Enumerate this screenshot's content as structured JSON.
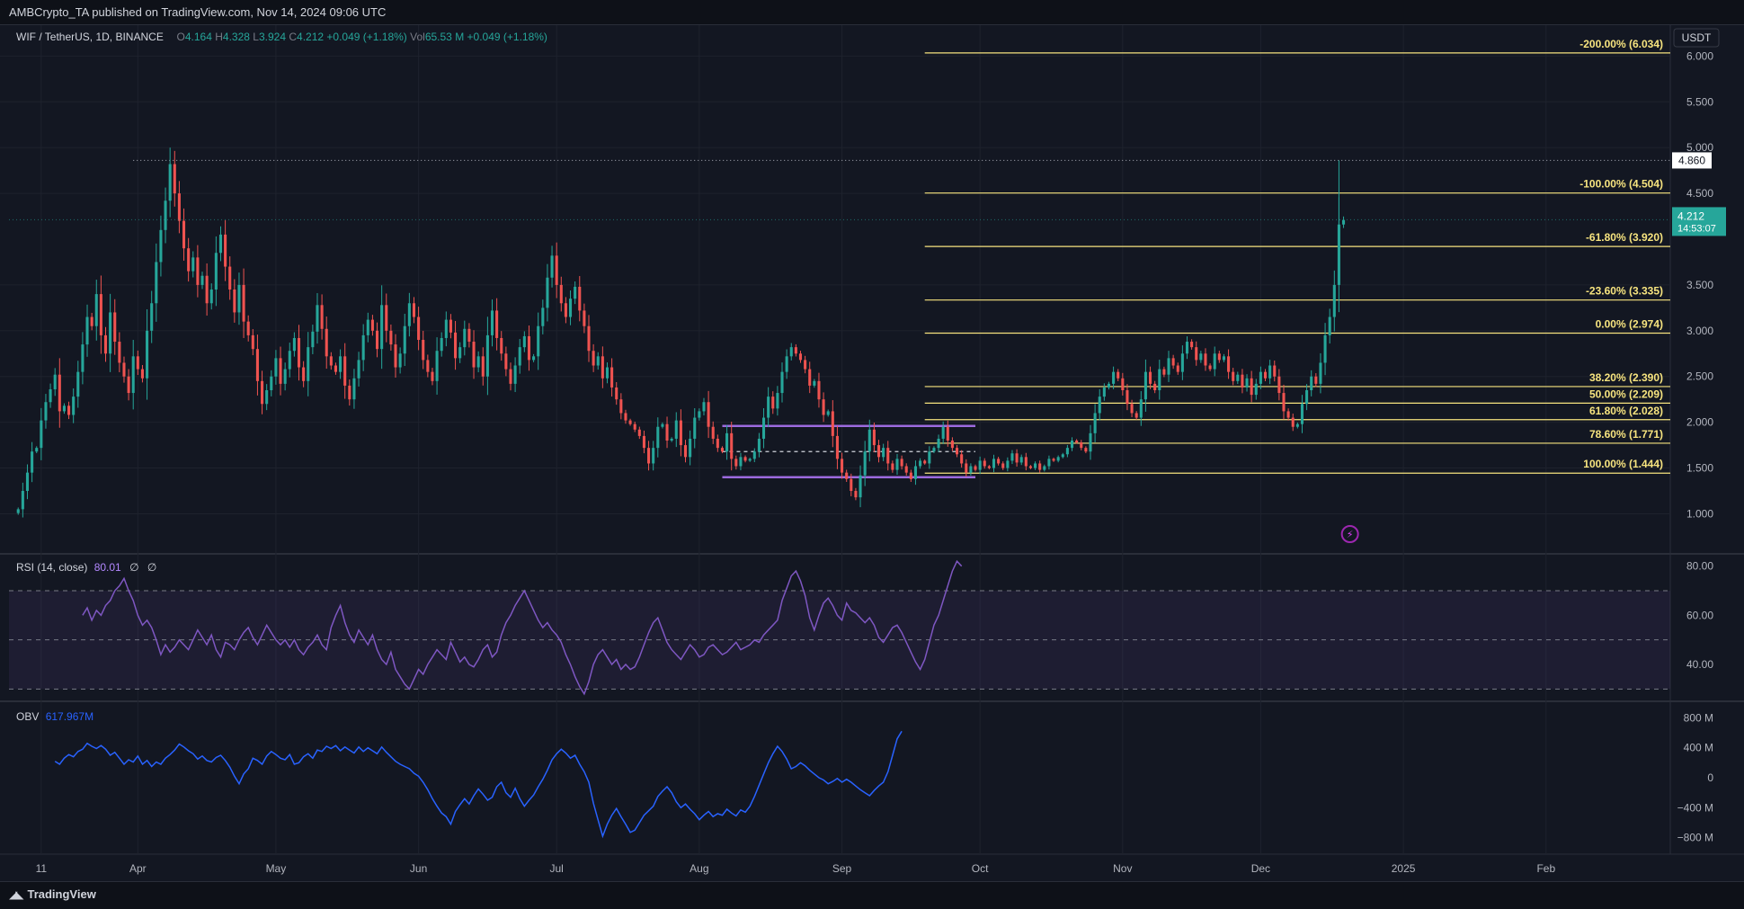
{
  "header": {
    "publisher": "AMBCrypto_TA published on TradingView.com, Nov 14, 2024 09:06 UTC"
  },
  "legend": {
    "symbol": "WIF / TetherUS, 1D, BINANCE",
    "o_label": "O",
    "o": "4.164",
    "h_label": "H",
    "h": "4.328",
    "l_label": "L",
    "l": "3.924",
    "c_label": "C",
    "c": "4.212",
    "change": "+0.049 (+1.18%)",
    "vol_label": "Vol",
    "vol": "65.53 M",
    "vol_change": "+0.049 (+1.18%)"
  },
  "price_axis": {
    "currency": "USDT",
    "high_marker": "4.860",
    "last_price": "4.212",
    "countdown": "14:53:07"
  },
  "rsi": {
    "label": "RSI (14, close)",
    "value": "80.01",
    "extra1": "∅",
    "extra2": "∅"
  },
  "obv": {
    "label": "OBV",
    "value": "617.967M"
  },
  "footer": {
    "brand": "TradingView"
  },
  "colors": {
    "background": "#131722",
    "up": "#26a69a",
    "down": "#ef5350",
    "fib": "#f7e47f",
    "range": "#9c6ade",
    "rsi": "#7e57c2",
    "obv": "#2962ff"
  },
  "chart_data": [
    {
      "type": "candlestick",
      "title": "WIF / TetherUS, 1D, BINANCE",
      "x_ticks": [
        "11",
        "Apr",
        "May",
        "Jun",
        "Jul",
        "Aug",
        "Sep",
        "Oct",
        "Nov",
        "Dec",
        "2025",
        "Feb"
      ],
      "y_ticks": [
        "6.000",
        "5.500",
        "5.000",
        "4.500",
        "3.500",
        "3.000",
        "2.500",
        "2.000",
        "1.500",
        "1.000"
      ],
      "ylim": [
        0.7,
        6.2
      ],
      "x_range": [
        "2024-03-04",
        "2025-02-28"
      ],
      "first_date": "2024-03-06",
      "close": [
        1.05,
        1.25,
        1.45,
        1.68,
        1.72,
        2.02,
        2.22,
        2.36,
        2.52,
        2.12,
        2.18,
        2.08,
        2.28,
        2.55,
        2.85,
        3.15,
        3.05,
        3.4,
        2.95,
        2.75,
        3.2,
        2.88,
        2.65,
        2.5,
        2.32,
        2.72,
        2.58,
        2.48,
        3.0,
        3.3,
        3.75,
        4.1,
        4.42,
        4.82,
        4.5,
        4.2,
        3.9,
        3.65,
        3.8,
        3.5,
        3.6,
        3.3,
        3.45,
        3.85,
        4.05,
        3.7,
        3.45,
        3.2,
        3.5,
        3.1,
        2.95,
        2.8,
        2.45,
        2.2,
        2.35,
        2.5,
        2.7,
        2.42,
        2.58,
        2.78,
        2.92,
        2.6,
        2.45,
        2.82,
        2.99,
        3.28,
        3.02,
        2.72,
        2.62,
        2.55,
        2.72,
        2.4,
        2.25,
        2.48,
        2.68,
        2.95,
        3.12,
        3.0,
        2.8,
        3.28,
        3.0,
        2.85,
        2.6,
        2.75,
        3.05,
        3.3,
        3.15,
        2.9,
        2.68,
        2.55,
        2.45,
        2.78,
        2.92,
        3.12,
        2.98,
        2.7,
        2.82,
        3.02,
        2.88,
        2.6,
        2.72,
        2.5,
        2.95,
        3.22,
        2.92,
        2.75,
        2.58,
        2.42,
        2.62,
        2.82,
        2.94,
        2.68,
        2.72,
        3.05,
        3.25,
        3.58,
        3.82,
        3.5,
        3.3,
        3.15,
        3.35,
        3.48,
        3.22,
        3.05,
        2.78,
        2.62,
        2.72,
        2.48,
        2.6,
        2.38,
        2.25,
        2.1,
        2.02,
        1.98,
        1.92,
        1.85,
        1.72,
        1.55,
        1.72,
        1.95,
        1.98,
        1.8,
        1.82,
        2.02,
        1.75,
        1.62,
        1.82,
        2.05,
        2.12,
        2.22,
        1.95,
        1.82,
        1.72,
        1.68,
        1.88,
        1.6,
        1.52,
        1.62,
        1.58,
        1.6,
        1.68,
        1.82,
        2.05,
        2.28,
        2.15,
        2.32,
        2.55,
        2.72,
        2.82,
        2.75,
        2.68,
        2.58,
        2.4,
        2.45,
        2.25,
        2.08,
        2.12,
        1.85,
        1.6,
        1.45,
        1.38,
        1.25,
        1.18,
        1.42,
        1.68,
        1.92,
        1.75,
        1.62,
        1.72,
        1.55,
        1.48,
        1.6,
        1.52,
        1.45,
        1.38,
        1.52,
        1.58,
        1.55,
        1.68,
        1.72,
        1.82,
        1.95,
        1.8,
        1.72,
        1.65,
        1.55,
        1.45,
        1.52,
        1.48,
        1.58,
        1.52,
        1.5,
        1.6,
        1.55,
        1.5,
        1.58,
        1.66,
        1.56,
        1.62,
        1.52,
        1.5,
        1.55,
        1.48,
        1.52,
        1.6,
        1.58,
        1.62,
        1.65,
        1.72,
        1.8,
        1.78,
        1.72,
        1.68,
        1.88,
        2.1,
        2.28,
        2.38,
        2.42,
        2.55,
        2.48,
        2.35,
        2.2,
        2.1,
        2.05,
        2.25,
        2.55,
        2.42,
        2.35,
        2.58,
        2.52,
        2.7,
        2.62,
        2.55,
        2.75,
        2.88,
        2.82,
        2.68,
        2.75,
        2.62,
        2.58,
        2.75,
        2.68,
        2.72,
        2.55,
        2.45,
        2.52,
        2.38,
        2.48,
        2.3,
        2.42,
        2.55,
        2.48,
        2.62,
        2.5,
        2.32,
        2.12,
        2.05,
        1.95,
        1.98,
        2.2,
        2.35,
        2.5,
        2.42,
        2.65,
        2.95,
        3.15,
        3.5,
        4.16,
        4.21
      ]
    },
    {
      "type": "annotations",
      "fib_levels": [
        {
          "label": "-200.00% (6.034)",
          "value": 6.034
        },
        {
          "label": "-100.00% (4.504)",
          "value": 4.504
        },
        {
          "label": "-61.80% (3.920)",
          "value": 3.92
        },
        {
          "label": "-23.60% (3.335)",
          "value": 3.335
        },
        {
          "label": "0.00% (2.974)",
          "value": 2.974
        },
        {
          "label": "38.20% (2.390)",
          "value": 2.39
        },
        {
          "label": "50.00% (2.209)",
          "value": 2.209
        },
        {
          "label": "61.80% (2.028)",
          "value": 2.028
        },
        {
          "label": "78.60% (1.771)",
          "value": 1.771
        },
        {
          "label": "100.00% (1.444)",
          "value": 1.444
        }
      ],
      "range_box": {
        "start": "2024-08-06",
        "end": "2024-09-30",
        "high": 1.96,
        "low": 1.4,
        "mid": 1.68
      },
      "prior_high": {
        "value": 4.86,
        "start": "2024-03-31"
      }
    },
    {
      "type": "line",
      "name": "RSI (14, close)",
      "y_ticks": [
        "80.00",
        "60.00",
        "40.00"
      ],
      "ylim": [
        25,
        85
      ],
      "bands": [
        70,
        50,
        30
      ],
      "x_range": [
        "2024-03-04",
        "2025-02-28"
      ],
      "first_date": "2024-03-20",
      "values": [
        60,
        63,
        58,
        62,
        60,
        64,
        66,
        70,
        72,
        75,
        70,
        66,
        60,
        56,
        58,
        55,
        50,
        44,
        48,
        45,
        47,
        50,
        48,
        46,
        50,
        54,
        51,
        48,
        52,
        46,
        43,
        49,
        48,
        46,
        50,
        53,
        55,
        51,
        48,
        52,
        56,
        53,
        50,
        48,
        50,
        47,
        50,
        46,
        44,
        47,
        49,
        52,
        48,
        46,
        55,
        60,
        64,
        57,
        52,
        49,
        54,
        51,
        48,
        52,
        46,
        42,
        40,
        45,
        38,
        35,
        32,
        30,
        34,
        38,
        36,
        40,
        43,
        46,
        44,
        42,
        49,
        45,
        41,
        43,
        40,
        39,
        42,
        46,
        48,
        43,
        45,
        52,
        57,
        60,
        64,
        67,
        70,
        66,
        62,
        58,
        55,
        57,
        54,
        52,
        49,
        44,
        40,
        35,
        31,
        28,
        33,
        40,
        44,
        46,
        43,
        40,
        42,
        38,
        40,
        38,
        39,
        43,
        48,
        53,
        57,
        59,
        54,
        49,
        46,
        44,
        42,
        45,
        48,
        46,
        43,
        44,
        47,
        48,
        46,
        44,
        45,
        47,
        49,
        46,
        47,
        48,
        50,
        49,
        52,
        54,
        56,
        58,
        66,
        71,
        76,
        78,
        74,
        68,
        59,
        54,
        60,
        65,
        67,
        64,
        60,
        58,
        65,
        62,
        61,
        59,
        57,
        59,
        56,
        51,
        49,
        52,
        55,
        56,
        53,
        49,
        45,
        41,
        38,
        42,
        49,
        56,
        60,
        66,
        72,
        78,
        82,
        80
      ]
    },
    {
      "type": "line",
      "name": "OBV",
      "y_ticks": [
        "800 M",
        "400 M",
        "0",
        "−400 M",
        "−800 M"
      ],
      "ylim": [
        -900,
        900
      ],
      "x_range": [
        "2024-03-04",
        "2025-02-28"
      ],
      "first_date": "2024-03-14",
      "values": [
        220,
        180,
        260,
        310,
        280,
        350,
        380,
        460,
        420,
        390,
        430,
        380,
        300,
        340,
        260,
        180,
        240,
        210,
        290,
        180,
        230,
        150,
        210,
        180,
        260,
        310,
        370,
        450,
        410,
        360,
        320,
        250,
        290,
        230,
        210,
        270,
        300,
        230,
        140,
        20,
        -80,
        50,
        120,
        260,
        230,
        180,
        290,
        350,
        310,
        260,
        240,
        310,
        180,
        200,
        280,
        320,
        260,
        370,
        350,
        420,
        390,
        430,
        360,
        410,
        370,
        330,
        410,
        350,
        400,
        360,
        320,
        410,
        340,
        280,
        220,
        180,
        150,
        120,
        60,
        20,
        -60,
        -160,
        -280,
        -380,
        -470,
        -520,
        -620,
        -450,
        -360,
        -280,
        -350,
        -240,
        -150,
        -220,
        -300,
        -260,
        -120,
        -60,
        -200,
        -260,
        -140,
        -280,
        -380,
        -300,
        -230,
        -120,
        -20,
        100,
        240,
        320,
        380,
        330,
        260,
        300,
        180,
        80,
        -60,
        -340,
        -560,
        -780,
        -620,
        -500,
        -410,
        -520,
        -620,
        -730,
        -700,
        -600,
        -500,
        -440,
        -380,
        -250,
        -180,
        -120,
        -200,
        -320,
        -400,
        -350,
        -420,
        -480,
        -560,
        -500,
        -450,
        -520,
        -480,
        -500,
        -420,
        -470,
        -510,
        -430,
        -460,
        -380,
        -250,
        -100,
        50,
        200,
        320,
        420,
        350,
        250,
        120,
        150,
        200,
        160,
        100,
        50,
        0,
        -30,
        -80,
        -50,
        -10,
        -60,
        -20,
        -60,
        -110,
        -160,
        -200,
        -240,
        -170,
        -110,
        -60,
        80,
        300,
        520,
        620
      ]
    }
  ]
}
